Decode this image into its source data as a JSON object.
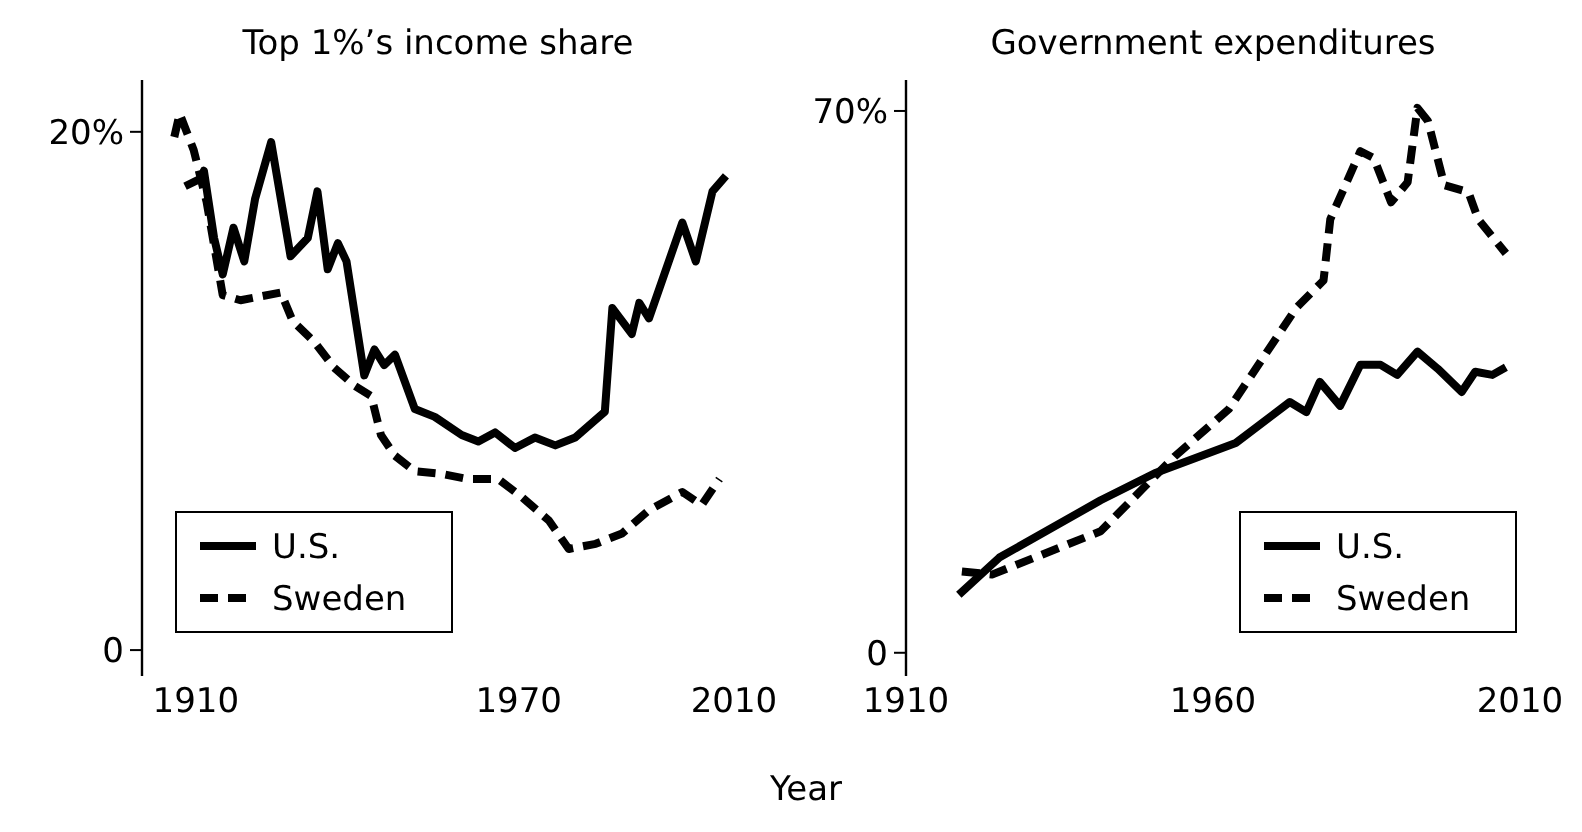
{
  "chart_data": [
    {
      "type": "line",
      "title": "Top 1%’s income share",
      "xlim": [
        1900,
        2010
      ],
      "xticks": [
        1910,
        1970,
        2010
      ],
      "ylim": [
        -1,
        22
      ],
      "yticks": [
        0,
        {
          "value": 20,
          "label": "20%"
        }
      ],
      "legend": "bottom left",
      "grid": false,
      "series": [
        {
          "name": "U.S.",
          "color": "#000000",
          "line_style": "solid",
          "x": [
            1908,
            1911,
            1911.5,
            1913.4,
            1915,
            1917,
            1919,
            1921,
            1924,
            1927.6,
            1930.8,
            1932.6,
            1934.5,
            1936.4,
            1938,
            1941.3,
            1943.2,
            1945,
            1947,
            1950.7,
            1954.4,
            1959.4,
            1962.5,
            1965.6,
            1969.3,
            1973,
            1976.8,
            1980.5,
            1986,
            1987.4,
            1991,
            1992.4,
            1994.2,
            2000.4,
            2002.9,
            2006,
            2008.5
          ],
          "values": [
            17.9,
            18.2,
            18.5,
            15.9,
            14.5,
            16.3,
            15,
            17.4,
            19.6,
            15.2,
            15.9,
            17.7,
            14.7,
            15.7,
            15,
            10.6,
            11.6,
            11,
            11.4,
            9.3,
            9,
            8.3,
            8.05,
            8.4,
            7.8,
            8.2,
            7.9,
            8.2,
            9.2,
            13.2,
            12.2,
            13.4,
            12.8,
            16.5,
            15,
            17.7,
            18.3
          ]
        },
        {
          "name": "Sweden",
          "color": "#000000",
          "line_style": "dashed",
          "x": [
            1906,
            1907,
            1909.6,
            1912,
            1915,
            1918.3,
            1925.8,
            1928,
            1932,
            1935.7,
            1939.5,
            1942.6,
            1944.4,
            1947,
            1950.7,
            1955.6,
            1960.6,
            1966.2,
            1970.6,
            1975.6,
            1979.3,
            1984.3,
            1989.2,
            1994.2,
            2000.4,
            2004,
            2007.3
          ],
          "values": [
            19.8,
            20.7,
            19.3,
            17.3,
            13.7,
            13.5,
            13.8,
            12.7,
            11.9,
            10.9,
            10.2,
            9.8,
            8.3,
            7.5,
            6.9,
            6.8,
            6.6,
            6.6,
            5.9,
            5,
            3.9,
            4.1,
            4.5,
            5.4,
            6.1,
            5.6,
            6.6
          ]
        }
      ]
    },
    {
      "type": "line",
      "title": "Government expenditures",
      "xlabel": "Year",
      "xlim": [
        1910,
        2010
      ],
      "xticks": [
        1910,
        1960,
        2010
      ],
      "ylim": [
        -3,
        74
      ],
      "yticks": [
        0,
        {
          "value": 70,
          "label": "70%"
        }
      ],
      "legend": "bottom right",
      "grid": false,
      "series": [
        {
          "name": "U.S.",
          "color": "#000000",
          "line_style": "solid",
          "x": [
            1918.6,
            1925.2,
            1941.7,
            1950.5,
            1963.7,
            1972.5,
            1975.2,
            1977.4,
            1980.7,
            1984,
            1987.3,
            1990,
            1993.3,
            1996.6,
            2000.5,
            2002.7,
            2005.5,
            2007.7
          ],
          "values": [
            7.5,
            12.3,
            19.7,
            23.2,
            27.1,
            32.4,
            31.1,
            35,
            31.9,
            37.2,
            37.2,
            35.9,
            38.9,
            36.7,
            33.7,
            36.3,
            35.9,
            36.9
          ]
        },
        {
          "name": "Sweden",
          "color": "#000000",
          "line_style": "dashed",
          "x": [
            1919.1,
            1924,
            1941.7,
            1948.3,
            1953.8,
            1962.6,
            1973.6,
            1978,
            1979.1,
            1984,
            1986.2,
            1989,
            1991.7,
            1993.3,
            1995,
            1997.7,
            2001.6,
            2003.2,
            2007.7
          ],
          "values": [
            10.5,
            10.1,
            15.7,
            21,
            25.4,
            31.5,
            44.6,
            48.1,
            56,
            64.8,
            63.9,
            58.2,
            60.8,
            70.4,
            68.7,
            60.4,
            59.5,
            56,
            51.6
          ]
        }
      ]
    }
  ]
}
